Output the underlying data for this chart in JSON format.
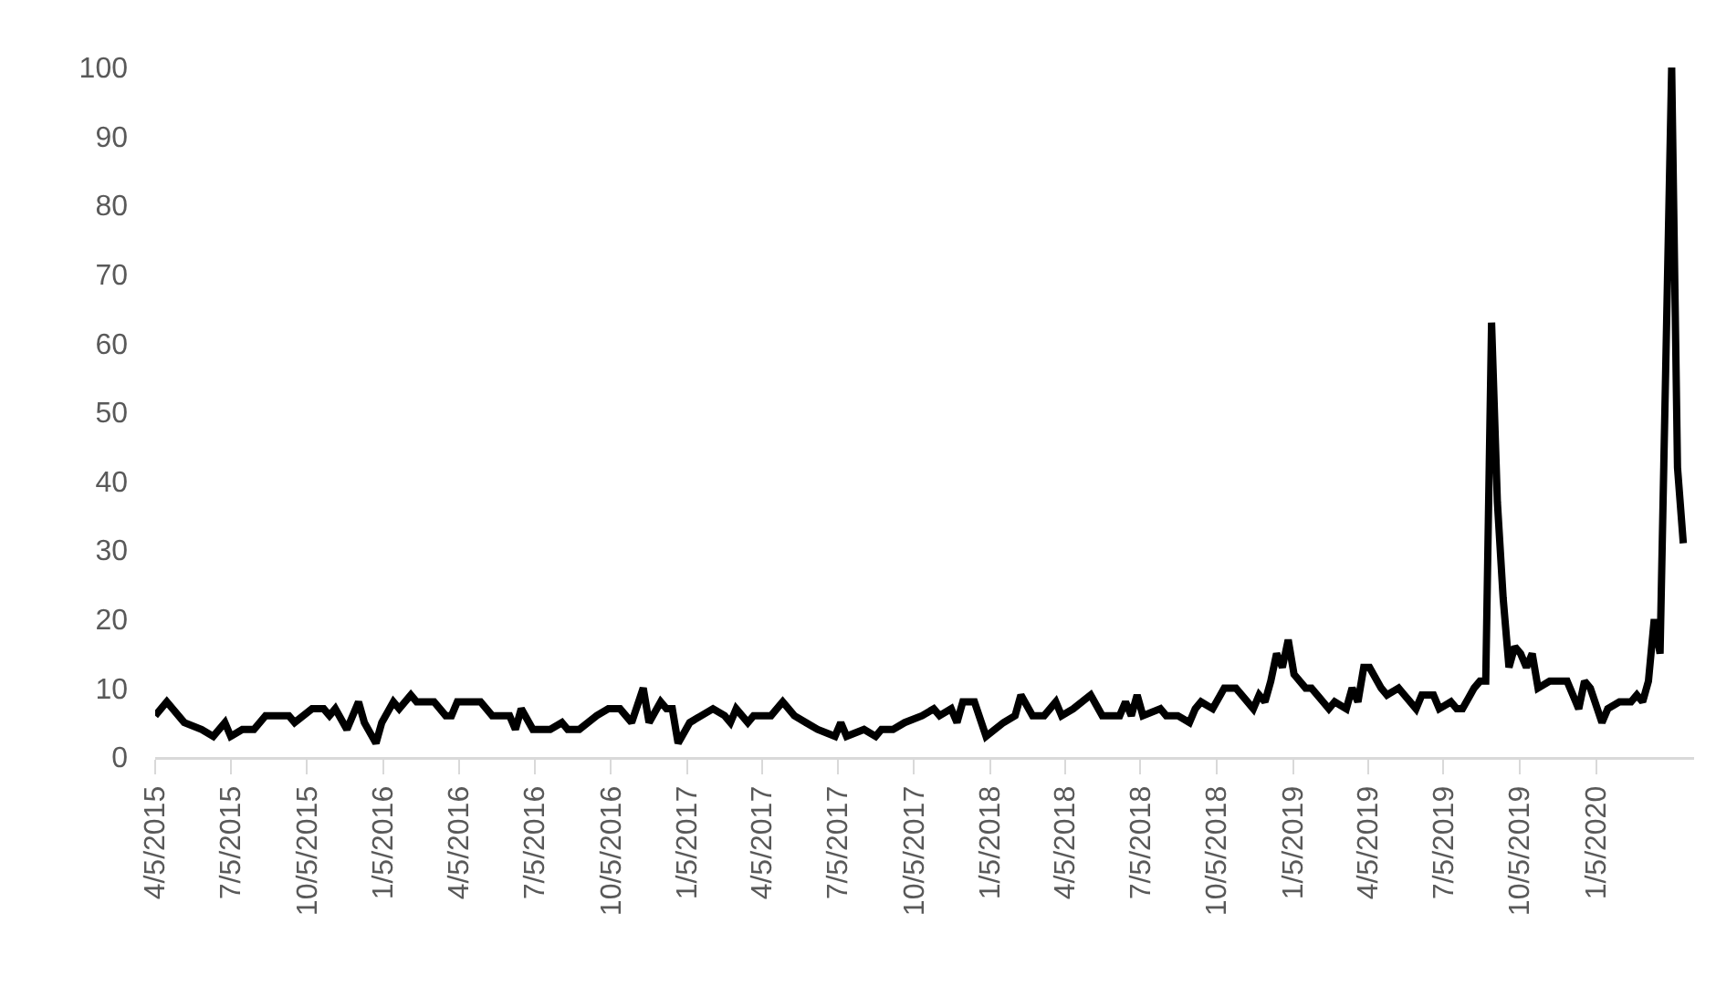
{
  "chart_data": {
    "type": "line",
    "x": [
      "2015-04-05",
      "2015-04-19",
      "2015-05-10",
      "2015-05-31",
      "2015-06-14",
      "2015-06-28",
      "2015-07-05",
      "2015-07-19",
      "2015-08-02",
      "2015-08-16",
      "2015-09-13",
      "2015-09-20",
      "2015-10-11",
      "2015-10-25",
      "2015-11-01",
      "2015-11-08",
      "2015-11-22",
      "2015-12-06",
      "2015-12-13",
      "2015-12-27",
      "2016-01-03",
      "2016-01-17",
      "2016-01-24",
      "2016-02-07",
      "2016-02-14",
      "2016-03-06",
      "2016-03-20",
      "2016-03-27",
      "2016-04-03",
      "2016-05-01",
      "2016-05-15",
      "2016-06-05",
      "2016-06-12",
      "2016-06-19",
      "2016-07-03",
      "2016-07-24",
      "2016-08-07",
      "2016-08-14",
      "2016-08-28",
      "2016-09-18",
      "2016-10-02",
      "2016-10-16",
      "2016-10-30",
      "2016-11-13",
      "2016-11-20",
      "2016-12-04",
      "2016-12-11",
      "2016-12-18",
      "2016-12-25",
      "2017-01-08",
      "2017-01-22",
      "2017-02-05",
      "2017-02-19",
      "2017-02-26",
      "2017-03-05",
      "2017-03-19",
      "2017-03-26",
      "2017-04-16",
      "2017-04-30",
      "2017-05-14",
      "2017-05-28",
      "2017-06-11",
      "2017-07-02",
      "2017-07-09",
      "2017-07-16",
      "2017-08-06",
      "2017-08-20",
      "2017-08-27",
      "2017-09-10",
      "2017-09-24",
      "2017-10-15",
      "2017-10-29",
      "2017-11-05",
      "2017-11-19",
      "2017-11-26",
      "2017-12-03",
      "2017-12-17",
      "2017-12-31",
      "2018-01-21",
      "2018-02-04",
      "2018-02-11",
      "2018-02-25",
      "2018-03-11",
      "2018-03-18",
      "2018-03-25",
      "2018-04-01",
      "2018-04-15",
      "2018-05-06",
      "2018-05-20",
      "2018-06-10",
      "2018-06-17",
      "2018-06-24",
      "2018-07-01",
      "2018-07-08",
      "2018-07-29",
      "2018-08-05",
      "2018-08-19",
      "2018-09-02",
      "2018-09-09",
      "2018-09-16",
      "2018-09-30",
      "2018-10-14",
      "2018-10-28",
      "2018-11-18",
      "2018-11-25",
      "2018-12-02",
      "2018-12-09",
      "2018-12-16",
      "2018-12-23",
      "2018-12-30",
      "2019-01-06",
      "2019-01-20",
      "2019-01-27",
      "2019-02-10",
      "2019-02-17",
      "2019-02-24",
      "2019-03-10",
      "2019-03-17",
      "2019-03-24",
      "2019-03-31",
      "2019-04-07",
      "2019-04-21",
      "2019-04-28",
      "2019-05-12",
      "2019-05-19",
      "2019-06-02",
      "2019-06-09",
      "2019-06-23",
      "2019-06-30",
      "2019-07-14",
      "2019-07-21",
      "2019-07-28",
      "2019-08-11",
      "2019-08-18",
      "2019-08-25",
      "2019-09-01",
      "2019-09-08",
      "2019-09-15",
      "2019-09-22",
      "2019-09-29",
      "2019-10-06",
      "2019-10-13",
      "2019-10-20",
      "2019-10-27",
      "2019-11-10",
      "2019-12-01",
      "2019-12-15",
      "2019-12-22",
      "2019-12-29",
      "2020-01-12",
      "2020-01-19",
      "2020-02-02",
      "2020-02-16",
      "2020-02-23",
      "2020-03-01",
      "2020-03-08",
      "2020-03-15",
      "2020-03-22",
      "2020-04-05",
      "2020-04-12",
      "2020-04-19"
    ],
    "series": [
      {
        "color": "#000000",
        "values": [
          6,
          8,
          5,
          4,
          3,
          5,
          3,
          4,
          4,
          6,
          6,
          5,
          7,
          7,
          6,
          7,
          4,
          8,
          5,
          2,
          5,
          8,
          7,
          9,
          8,
          8,
          6,
          6,
          8,
          8,
          6,
          6,
          4,
          7,
          4,
          4,
          5,
          4,
          4,
          6,
          7,
          7,
          5,
          10,
          5,
          8,
          7,
          7,
          2,
          5,
          6,
          7,
          6,
          5,
          7,
          5,
          6,
          6,
          8,
          6,
          5,
          4,
          3,
          5,
          3,
          4,
          3,
          4,
          4,
          5,
          6,
          7,
          6,
          7,
          5,
          8,
          8,
          3,
          5,
          6,
          9,
          6,
          6,
          7,
          8,
          6,
          7,
          9,
          6,
          6,
          8,
          6,
          9,
          6,
          7,
          6,
          6,
          5,
          7,
          8,
          7,
          10,
          10,
          7,
          9,
          8,
          11,
          15,
          13,
          17,
          12,
          10,
          10,
          8,
          7,
          8,
          7,
          10,
          8,
          13,
          13,
          10,
          9,
          10,
          9,
          7,
          9,
          9,
          7,
          8,
          7,
          7,
          10,
          11,
          11,
          63,
          37,
          23,
          13,
          16,
          15,
          13,
          15,
          10,
          11,
          11,
          7,
          11,
          10,
          5,
          7,
          8,
          8,
          9,
          8,
          11,
          20,
          15,
          100,
          42,
          31
        ]
      }
    ],
    "xlim": [
      "2015-04-05",
      "2020-05-02"
    ],
    "xticks": [
      {
        "value": "2015-04-05",
        "label": "4/5/2015"
      },
      {
        "value": "2015-07-05",
        "label": "7/5/2015"
      },
      {
        "value": "2015-10-05",
        "label": "10/5/2015"
      },
      {
        "value": "2016-01-05",
        "label": "1/5/2016"
      },
      {
        "value": "2016-04-05",
        "label": "4/5/2016"
      },
      {
        "value": "2016-07-05",
        "label": "7/5/2016"
      },
      {
        "value": "2016-10-05",
        "label": "10/5/2016"
      },
      {
        "value": "2017-01-05",
        "label": "1/5/2017"
      },
      {
        "value": "2017-04-05",
        "label": "4/5/2017"
      },
      {
        "value": "2017-07-05",
        "label": "7/5/2017"
      },
      {
        "value": "2017-10-05",
        "label": "10/5/2017"
      },
      {
        "value": "2018-01-05",
        "label": "1/5/2018"
      },
      {
        "value": "2018-04-05",
        "label": "4/5/2018"
      },
      {
        "value": "2018-07-05",
        "label": "7/5/2018"
      },
      {
        "value": "2018-10-05",
        "label": "10/5/2018"
      },
      {
        "value": "2019-01-05",
        "label": "1/5/2019"
      },
      {
        "value": "2019-04-05",
        "label": "4/5/2019"
      },
      {
        "value": "2019-07-05",
        "label": "7/5/2019"
      },
      {
        "value": "2019-10-05",
        "label": "10/5/2019"
      },
      {
        "value": "2020-01-05",
        "label": "1/5/2020"
      }
    ],
    "ylim": [
      0,
      100
    ],
    "yticks": [
      0,
      10,
      20,
      30,
      40,
      50,
      60,
      70,
      80,
      90,
      100
    ],
    "grid": false,
    "marker": "none",
    "line_style": "solid"
  }
}
